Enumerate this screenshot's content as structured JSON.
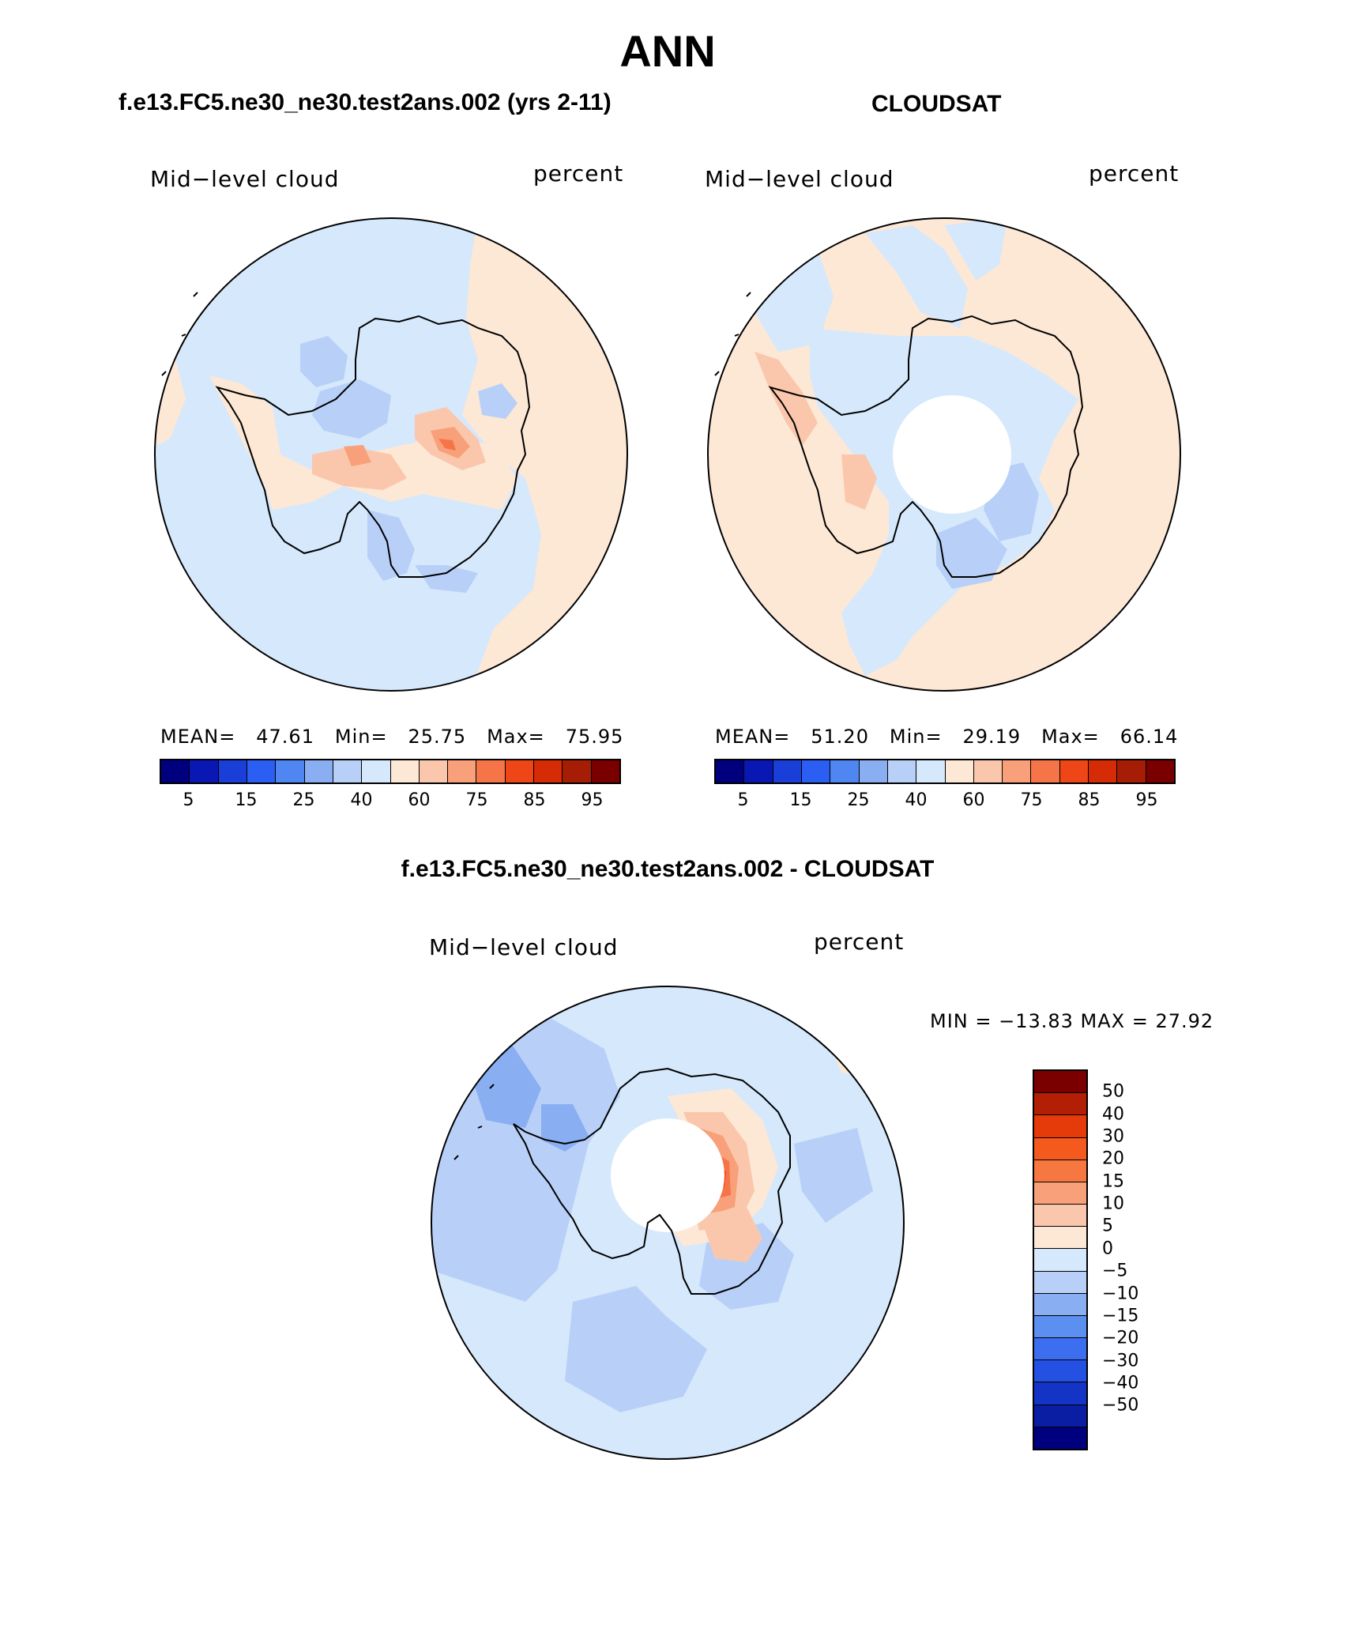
{
  "figure": {
    "title": "ANN"
  },
  "panels": [
    {
      "case_title": "f.e13.FC5.ne30_ne30.test2ans.002 (yrs 2-11)",
      "variable": "Mid−level cloud",
      "units": "percent",
      "stats": {
        "mean_label": "MEAN=",
        "mean": "47.61",
        "min_label": "Min=",
        "min": "25.75",
        "max_label": "Max=",
        "max": "75.95"
      }
    },
    {
      "case_title": "CLOUDSAT",
      "variable": "Mid−level cloud",
      "units": "percent",
      "stats": {
        "mean_label": "MEAN=",
        "mean": "51.20",
        "min_label": "Min=",
        "min": "29.19",
        "max_label": "Max=",
        "max": "66.14"
      }
    },
    {
      "case_title": "f.e13.FC5.ne30_ne30.test2ans.002 - CLOUDSAT",
      "variable": "Mid−level cloud",
      "units": "percent",
      "minmax_text": "MIN = −13.83 MAX =   27.92"
    }
  ],
  "colorbar_abs": {
    "colors": [
      "#00007f",
      "#0a18b3",
      "#1a3ed8",
      "#2b5ef2",
      "#4f86f2",
      "#89aef2",
      "#b8d0f8",
      "#d6e8fb",
      "#fde8d6",
      "#fbc7ac",
      "#f8a07a",
      "#f67548",
      "#ee4617",
      "#d52c07",
      "#a61d06",
      "#7a0000"
    ],
    "labels": [
      "5",
      "15",
      "25",
      "40",
      "60",
      "75",
      "85",
      "95"
    ]
  },
  "colorbar_diff": {
    "colors": [
      "#7a0000",
      "#b21f05",
      "#e53a0a",
      "#f45a1e",
      "#f6773f",
      "#f8a07a",
      "#fbc7ac",
      "#fde8d6",
      "#d6e8fb",
      "#b8d0f8",
      "#89aef2",
      "#5b8ff0",
      "#3d6ef0",
      "#2451e2",
      "#1434c6",
      "#0a1ea4",
      "#00007f"
    ],
    "labels": [
      "50",
      "40",
      "30",
      "20",
      "15",
      "10",
      "5",
      "0",
      "−5",
      "−10",
      "−15",
      "−20",
      "−30",
      "−40",
      "−50"
    ]
  },
  "map_colors": {
    "lightblue": "#d6e8fb",
    "blue1": "#b8d0f8",
    "blue2": "#89aef2",
    "peach": "#fde8d6",
    "salmon1": "#fbc7ac",
    "salmon2": "#f8a07a",
    "orange": "#f67548",
    "red": "#ee4617"
  }
}
